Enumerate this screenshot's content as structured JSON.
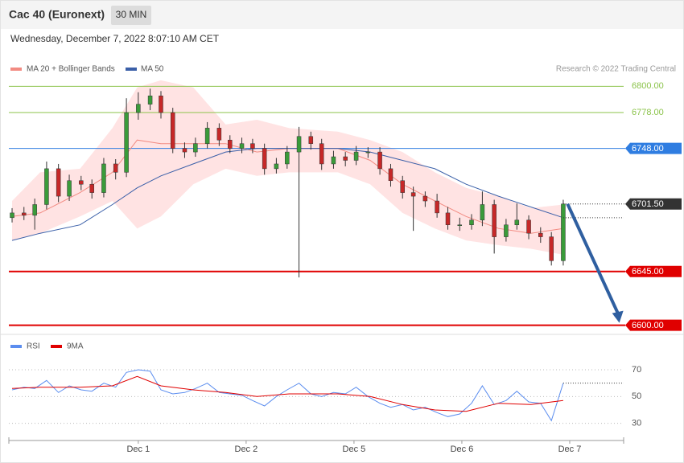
{
  "header": {
    "title": "Cac 40 (Euronext)",
    "interval": "30 MIN",
    "timestamp": "Wednesday, December 7, 2022 8:07:10 AM CET"
  },
  "credit": "Research © 2022 Trading Central",
  "chart_data": [
    {
      "type": "candlestick",
      "xlim": [
        -0.2,
        5.5
      ],
      "ylim": [
        6593,
        6848
      ],
      "up_color": "#3a9b3a",
      "down_color": "#c62828",
      "x": [
        -0.17,
        -0.06,
        0.04,
        0.15,
        0.26,
        0.36,
        0.47,
        0.57,
        0.68,
        0.79,
        0.89,
        1.0,
        1.11,
        1.21,
        1.32,
        1.43,
        1.53,
        1.64,
        1.75,
        1.85,
        1.96,
        2.06,
        2.17,
        2.28,
        2.38,
        2.49,
        2.6,
        2.7,
        2.81,
        2.92,
        3.02,
        3.13,
        3.24,
        3.34,
        3.45,
        3.55,
        3.66,
        3.77,
        3.87,
        3.98,
        4.09,
        4.19,
        4.3,
        4.41,
        4.51,
        4.62,
        4.73,
        4.83,
        4.94
      ],
      "open": [
        6690,
        6694,
        6692,
        6701,
        6731,
        6708,
        6721,
        6718,
        6711,
        6735,
        6728,
        6778,
        6785,
        6792,
        6778,
        6748,
        6745,
        6752,
        6765,
        6755,
        6748,
        6752,
        6748,
        6731,
        6735,
        6745,
        6758,
        6752,
        6735,
        6741,
        6738,
        6745,
        6745,
        6731,
        6721,
        6711,
        6708,
        6704,
        6694,
        6684,
        6684,
        6688,
        6701,
        6674,
        6684,
        6688,
        6677,
        6674,
        6654
      ],
      "high": [
        6698,
        6699,
        6706,
        6737,
        6735,
        6726,
        6725,
        6722,
        6740,
        6739,
        6790,
        6795,
        6798,
        6796,
        6782,
        6753,
        6757,
        6770,
        6769,
        6759,
        6757,
        6756,
        6752,
        6740,
        6750,
        6766,
        6762,
        6756,
        6746,
        6745,
        6750,
        6749,
        6749,
        6735,
        6725,
        6716,
        6712,
        6710,
        6699,
        6690,
        6693,
        6712,
        6705,
        6689,
        6702,
        6692,
        6682,
        6678,
        6705
      ],
      "low": [
        6686,
        6688,
        6680,
        6697,
        6703,
        6704,
        6713,
        6706,
        6707,
        6722,
        6724,
        6772,
        6780,
        6773,
        6744,
        6740,
        6741,
        6748,
        6750,
        6744,
        6744,
        6744,
        6726,
        6727,
        6731,
        6640,
        6747,
        6730,
        6731,
        6733,
        6734,
        6740,
        6726,
        6716,
        6706,
        6679,
        6699,
        6690,
        6680,
        6679,
        6680,
        6683,
        6660,
        6670,
        6680,
        6672,
        6669,
        6650,
        6650
      ],
      "close": [
        6694,
        6692,
        6701,
        6731,
        6708,
        6721,
        6718,
        6711,
        6735,
        6728,
        6778,
        6785,
        6792,
        6778,
        6748,
        6745,
        6752,
        6765,
        6755,
        6748,
        6752,
        6748,
        6731,
        6735,
        6745,
        6758,
        6752,
        6735,
        6741,
        6738,
        6745,
        6745,
        6731,
        6721,
        6711,
        6708,
        6704,
        6694,
        6684,
        6684,
        6688,
        6701,
        6674,
        6684,
        6688,
        6677,
        6674,
        6654,
        6701.5
      ],
      "last_label": "6701.50",
      "overlay_x": [
        -0.17,
        0.09,
        0.46,
        0.76,
        0.99,
        1.21,
        1.51,
        1.81,
        2.1,
        2.4,
        2.85,
        3.15,
        3.45,
        3.75,
        4.04,
        4.34,
        4.64,
        4.94
      ],
      "bands": {
        "name": "MA 20 + Bollinger Bands",
        "color": "#f28b82",
        "fill": "#ffe3e3",
        "ma": [
          6691,
          6694,
          6711,
          6728,
          6755,
          6752,
          6752,
          6752,
          6745,
          6748,
          6748,
          6738,
          6718,
          6704,
          6691,
          6681,
          6677,
          6681
        ],
        "upper": [
          6704,
          6728,
          6731,
          6765,
          6799,
          6805,
          6799,
          6768,
          6772,
          6765,
          6762,
          6755,
          6745,
          6728,
          6715,
          6708,
          6698,
          6701
        ],
        "lower": [
          6671,
          6677,
          6691,
          6704,
          6681,
          6691,
          6718,
          6731,
          6725,
          6728,
          6728,
          6718,
          6694,
          6681,
          6671,
          6667,
          6664,
          6659
        ]
      },
      "ma50": {
        "name": "MA 50",
        "color": "#3a5fa8",
        "values": [
          6671,
          6677,
          6684,
          6701,
          6715,
          6725,
          6735,
          6745,
          6748,
          6748,
          6748,
          6745,
          6738,
          6731,
          6718,
          6708,
          6699,
          6690
        ]
      },
      "levels": [
        {
          "value": 6800,
          "label": "6800.00",
          "color": "#8bc34a",
          "style": "text"
        },
        {
          "value": 6778,
          "label": "6778.00",
          "color": "#8bc34a",
          "style": "text"
        },
        {
          "value": 6748,
          "label": "6748.00",
          "color": "#2f7de1",
          "style": "box"
        },
        {
          "value": 6645,
          "label": "6645.00",
          "color": "#e00000",
          "style": "box"
        },
        {
          "value": 6600,
          "label": "6600.00",
          "color": "#e00000",
          "style": "box"
        }
      ],
      "arrow": {
        "x": [
          4.98,
          5.46
        ],
        "y": [
          6701.5,
          6602
        ],
        "color": "#2f5fa0"
      }
    },
    {
      "type": "line",
      "xlim": [
        -0.2,
        5.5
      ],
      "ylim": [
        19,
        94
      ],
      "yticks": [
        70,
        50,
        30
      ],
      "xticks": [
        {
          "value": 1,
          "label": "Dec 1"
        },
        {
          "value": 2,
          "label": "Dec 2"
        },
        {
          "value": 3,
          "label": "Dec 5"
        },
        {
          "value": 4,
          "label": "Dec 6"
        },
        {
          "value": 5,
          "label": "Dec 7"
        }
      ],
      "series": [
        {
          "name": "RSI",
          "color": "#5b8def",
          "x_ref": "chart_data.0.x",
          "values": [
            55,
            57,
            56,
            62,
            53,
            58,
            55,
            54,
            60,
            57,
            68,
            70,
            69,
            55,
            52,
            53,
            56,
            60,
            53,
            52,
            51,
            47,
            43,
            50,
            55,
            60,
            52,
            50,
            53,
            52,
            57,
            50,
            45,
            42,
            44,
            40,
            42,
            38,
            35,
            37,
            45,
            58,
            44,
            47,
            54,
            46,
            45,
            32,
            60
          ]
        },
        {
          "name": "9MA",
          "color": "#e00000",
          "x_ref": "chart_data.0.overlay_x",
          "values": [
            56,
            57,
            57,
            58,
            65,
            58,
            55,
            53,
            50,
            52,
            52,
            50,
            44,
            40,
            39,
            45,
            44,
            47
          ]
        }
      ]
    }
  ]
}
